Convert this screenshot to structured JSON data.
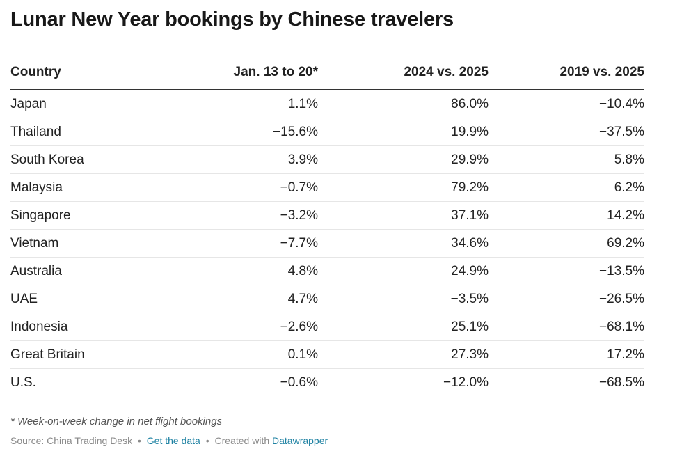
{
  "title": "Lunar New Year bookings by Chinese travelers",
  "chart_data": {
    "type": "table",
    "columns": [
      "Country",
      "Jan. 13 to 20*",
      "2024 vs. 2025",
      "2019 vs. 2025"
    ],
    "rows": [
      [
        "Japan",
        "1.1%",
        "86.0%",
        "−10.4%"
      ],
      [
        "Thailand",
        "−15.6%",
        "19.9%",
        "−37.5%"
      ],
      [
        "South Korea",
        "3.9%",
        "29.9%",
        "5.8%"
      ],
      [
        "Malaysia",
        "−0.7%",
        "79.2%",
        "6.2%"
      ],
      [
        "Singapore",
        "−3.2%",
        "37.1%",
        "14.2%"
      ],
      [
        "Vietnam",
        "−7.7%",
        "34.6%",
        "69.2%"
      ],
      [
        "Australia",
        "4.8%",
        "24.9%",
        "−13.5%"
      ],
      [
        "UAE",
        "4.7%",
        "−3.5%",
        "−26.5%"
      ],
      [
        "Indonesia",
        "−2.6%",
        "25.1%",
        "−68.1%"
      ],
      [
        "Great Britain",
        "0.1%",
        "27.3%",
        "17.2%"
      ],
      [
        "U.S.",
        "−0.6%",
        "−12.0%",
        "−68.5%"
      ]
    ]
  },
  "footnote": "* Week-on-week change in net flight bookings",
  "source": {
    "prefix": "Source: China Trading Desk",
    "separator": "•",
    "data_link": "Get the data",
    "created_with": "Created with",
    "tool_link": "Datawrapper"
  },
  "colors": {
    "link": "#1d81a2",
    "header_rule": "#333333",
    "row_rule": "#e6e6e6"
  }
}
